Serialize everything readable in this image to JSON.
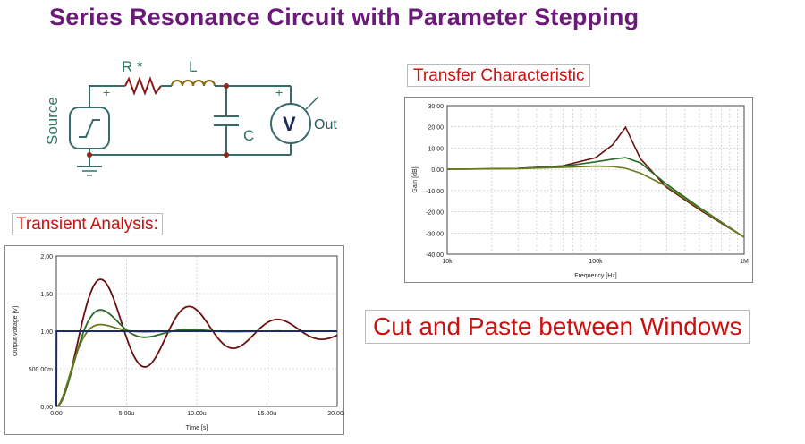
{
  "title": "Series Resonance Circuit with Parameter Stepping",
  "circuit": {
    "resistor_label": "R *",
    "inductor_label": "L",
    "capacitor_label": "C",
    "source_label": "Source",
    "meter_symbol": "V",
    "meter_label": "Out",
    "plus_sign": "+"
  },
  "transfer_label": "Transfer Characteristic",
  "transient_label": "Transient Analysis:",
  "cut_paste_label": "Cut and Paste between Windows",
  "colors": {
    "title": "#6b1a7a",
    "label_red": "#cc1010",
    "wire": "#3a6b6b",
    "series": [
      "#6b0f0f",
      "#2a6a2a",
      "#6b7a1a",
      "#1a2a6b"
    ]
  },
  "chart_data": [
    {
      "type": "line",
      "name": "transfer",
      "xlabel": "Frequency [Hz]",
      "ylabel": "Gain [dB]",
      "xscale": "log",
      "xlim": [
        10000,
        1000000
      ],
      "ylim": [
        -40,
        30
      ],
      "xticks": [
        10000,
        100000,
        1000000
      ],
      "xticklabels": [
        "10k",
        "100k",
        "1M"
      ],
      "yticks": [
        30,
        20,
        10,
        0,
        -10,
        -20,
        -30,
        -40
      ],
      "yticklabels": [
        "30.00",
        "20.00",
        "10.00",
        "0.00",
        "-10.00",
        "-20.00",
        "-30.00",
        "-40.00"
      ],
      "grid": true,
      "x": [
        10000,
        30000,
        60000,
        100000,
        130000,
        159000,
        200000,
        300000,
        500000,
        1000000
      ],
      "series": [
        {
          "values": [
            0.0,
            0.4,
            1.6,
            5.5,
            11.5,
            19.8,
            5.0,
            -8.5,
            -19.0,
            -32.0
          ]
        },
        {
          "values": [
            0.0,
            0.4,
            1.4,
            3.5,
            4.8,
            5.5,
            3.0,
            -7.0,
            -18.0,
            -32.0
          ]
        },
        {
          "values": [
            0.0,
            0.3,
            0.9,
            1.5,
            1.3,
            0.5,
            -1.8,
            -8.0,
            -18.5,
            -32.0
          ]
        }
      ]
    },
    {
      "type": "line",
      "name": "transient",
      "xlabel": "Time [s]",
      "ylabel": "Output voltage [V]",
      "xlim": [
        0,
        20
      ],
      "ylim": [
        0,
        2
      ],
      "xticks": [
        0,
        5,
        10,
        15,
        20
      ],
      "xticklabels": [
        "0.00",
        "5.00u",
        "10.00u",
        "15.00u",
        "20.00u"
      ],
      "yticks": [
        0,
        0.5,
        1.0,
        1.5,
        2.0
      ],
      "yticklabels": [
        "0.00",
        "500.00m",
        "1.00",
        "1.50",
        "2.00"
      ],
      "grid": true,
      "decay_constants": [
        8.5,
        2.5,
        1.3
      ],
      "period": 6.3,
      "x_sample_step": 0.1,
      "source": {
        "values": [
          0,
          1,
          1
        ],
        "x": [
          0,
          0.01,
          20
        ]
      }
    }
  ]
}
